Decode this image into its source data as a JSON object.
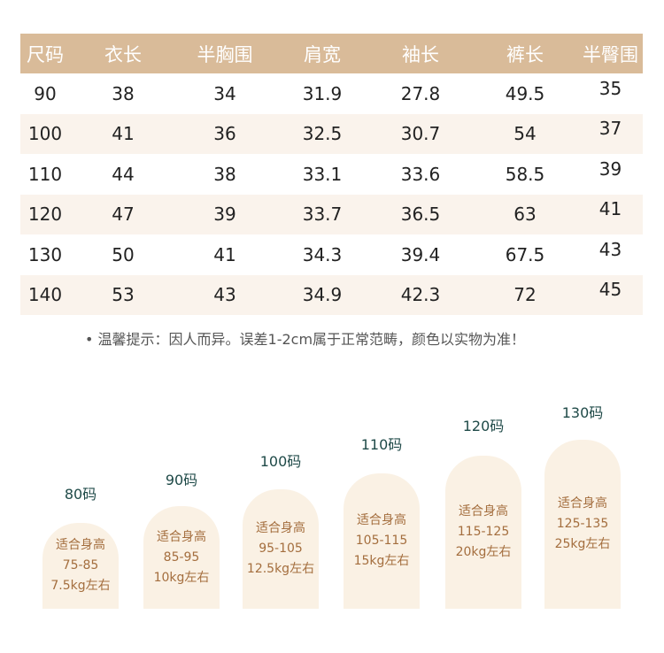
{
  "table": {
    "headers": [
      "尺码",
      "衣长",
      "半胸围",
      "肩宽",
      "袖长",
      "裤长",
      "半臀围"
    ],
    "rows": [
      [
        "90",
        "38",
        "34",
        "31.9",
        "27.8",
        "49.5",
        "35"
      ],
      [
        "100",
        "41",
        "36",
        "32.5",
        "30.7",
        "54",
        "37"
      ],
      [
        "110",
        "44",
        "38",
        "33.1",
        "33.6",
        "58.5",
        "39"
      ],
      [
        "120",
        "47",
        "39",
        "33.7",
        "36.5",
        "63",
        "41"
      ],
      [
        "130",
        "50",
        "41",
        "34.3",
        "39.4",
        "67.5",
        "43"
      ],
      [
        "140",
        "53",
        "43",
        "34.9",
        "42.3",
        "72",
        "45"
      ]
    ]
  },
  "note": "• 温馨提示：因人而异。误差1-2cm属于正常范畴，颜色以实物为准！",
  "sizes": [
    {
      "label": "80码",
      "fit": "适合身高",
      "height": "75-85",
      "weight": "7.5kg左右"
    },
    {
      "label": "90码",
      "fit": "适合身高",
      "height": "85-95",
      "weight": "10kg左右"
    },
    {
      "label": "100码",
      "fit": "适合身高",
      "height": "95-105",
      "weight": "12.5kg左右"
    },
    {
      "label": "110码",
      "fit": "适合身高",
      "height": "105-115",
      "weight": "15kg左右"
    },
    {
      "label": "120码",
      "fit": "适合身高",
      "height": "115-125",
      "weight": "20kg左右"
    },
    {
      "label": "130码",
      "fit": "适合身高",
      "height": "125-135",
      "weight": "25kg左右"
    }
  ],
  "colors": {
    "header": "#d9bb99",
    "row_alt": "#faf3ec",
    "pill_bg": "#faf1e4",
    "pill_text": "#a46e3e",
    "label_text": "#1f4a48"
  }
}
